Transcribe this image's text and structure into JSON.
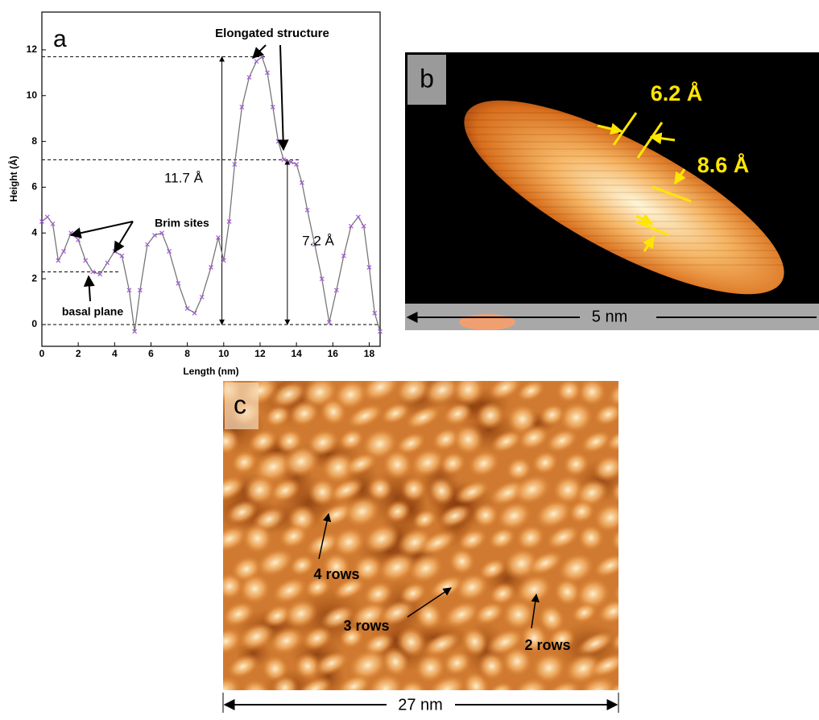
{
  "chart_data": {
    "type": "line",
    "panel_label": "a",
    "xlabel": "Length (nm)",
    "ylabel": "Height (Å)",
    "x": [
      0,
      0.3,
      0.6,
      0.9,
      1.2,
      1.6,
      2.0,
      2.4,
      2.8,
      3.2,
      3.6,
      4.0,
      4.4,
      4.8,
      5.1,
      5.4,
      5.8,
      6.2,
      6.6,
      7.0,
      7.5,
      8.0,
      8.4,
      8.8,
      9.3,
      9.7,
      10.0,
      10.3,
      10.6,
      11.0,
      11.4,
      11.8,
      12.1,
      12.4,
      12.7,
      13.0,
      13.3,
      13.7,
      14.0,
      14.3,
      14.6,
      15.0,
      15.4,
      15.8,
      16.2,
      16.6,
      17.0,
      17.4,
      17.7,
      18.0,
      18.3,
      18.6
    ],
    "values": [
      4.5,
      4.7,
      4.4,
      2.8,
      3.2,
      4.0,
      3.7,
      2.8,
      2.3,
      2.2,
      2.7,
      3.2,
      3.0,
      1.5,
      -0.3,
      1.5,
      3.5,
      3.9,
      4.0,
      3.2,
      1.8,
      0.7,
      0.5,
      1.2,
      2.5,
      3.8,
      2.8,
      4.5,
      7.0,
      9.5,
      10.8,
      11.5,
      11.7,
      11.0,
      9.5,
      8.0,
      7.2,
      7.1,
      7.0,
      6.2,
      5.0,
      3.5,
      2.0,
      0.1,
      1.5,
      3.0,
      4.3,
      4.7,
      4.3,
      2.5,
      0.5,
      -0.3
    ],
    "color": "#a45ad6",
    "line_color": "#777777",
    "xlim": [
      0,
      18.6
    ],
    "ylim": [
      -0.95,
      13.65
    ],
    "xticks": [
      0,
      2,
      4,
      6,
      8,
      10,
      12,
      14,
      16,
      18
    ],
    "yticks": [
      0,
      2,
      4,
      6,
      8,
      10,
      12
    ],
    "reference_lines": [
      11.7,
      7.2,
      2.3,
      0
    ],
    "annotations": [
      "Elongated structure",
      "Brim sites",
      "basal plane",
      "11.7 Å",
      "7.2 Å"
    ]
  },
  "images": [
    {
      "label": "b",
      "annotations": [
        "6.2 Å",
        "8.6 Å"
      ],
      "scale_bar": "5 nm"
    },
    {
      "label": "c",
      "annotations": [
        "4 rows",
        "3 rows",
        "2 rows"
      ],
      "scale_bar": "27 nm"
    }
  ]
}
